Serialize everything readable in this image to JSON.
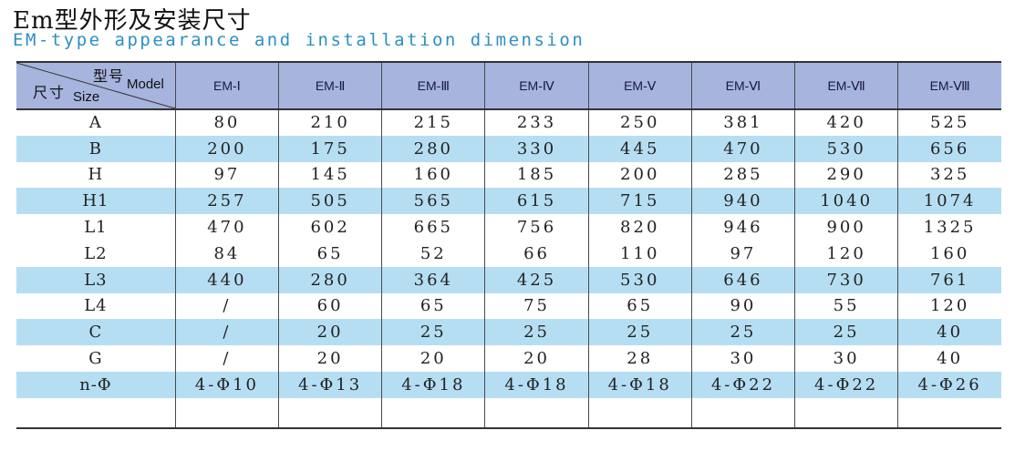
{
  "title_cn": "Em型外形及安装尺寸",
  "title_en": "EM-type appearance and installation dimension",
  "corner": {
    "model_cn": "型号",
    "model_en": "Model",
    "size_cn": "尺寸",
    "size_en": "Size"
  },
  "models": [
    "EM-Ⅰ",
    "EM-Ⅱ",
    "EM-Ⅲ",
    "EM-Ⅳ",
    "EM-Ⅴ",
    "EM-Ⅵ",
    "EM-Ⅶ",
    "EM-Ⅷ"
  ],
  "rows": [
    {
      "name": "A",
      "shade": "white",
      "values": [
        "80",
        "210",
        "215",
        "233",
        "250",
        "381",
        "420",
        "525"
      ]
    },
    {
      "name": "B",
      "shade": "blue",
      "values": [
        "200",
        "175",
        "280",
        "330",
        "445",
        "470",
        "530",
        "656"
      ]
    },
    {
      "name": "H",
      "shade": "white",
      "values": [
        "97",
        "145",
        "160",
        "185",
        "200",
        "285",
        "290",
        "325"
      ]
    },
    {
      "name": "H1",
      "shade": "blue",
      "values": [
        "257",
        "505",
        "565",
        "615",
        "715",
        "940",
        "1040",
        "1074"
      ]
    },
    {
      "name": "L1",
      "shade": "white",
      "values": [
        "470",
        "602",
        "665",
        "756",
        "820",
        "946",
        "900",
        "1325"
      ]
    },
    {
      "name": "L2",
      "shade": "white",
      "values": [
        "84",
        "65",
        "52",
        "66",
        "110",
        "97",
        "120",
        "160"
      ]
    },
    {
      "name": "L3",
      "shade": "blue",
      "values": [
        "440",
        "280",
        "364",
        "425",
        "530",
        "646",
        "730",
        "761"
      ]
    },
    {
      "name": "L4",
      "shade": "white",
      "values": [
        "/",
        "60",
        "65",
        "75",
        "65",
        "90",
        "55",
        "120"
      ]
    },
    {
      "name": "C",
      "shade": "blue",
      "values": [
        "/",
        "20",
        "25",
        "25",
        "25",
        "25",
        "25",
        "40"
      ]
    },
    {
      "name": "G",
      "shade": "white",
      "values": [
        "/",
        "20",
        "20",
        "20",
        "28",
        "30",
        "30",
        "40"
      ]
    },
    {
      "name": "n-Φ",
      "shade": "blue",
      "values": [
        "4-Φ10",
        "4-Φ13",
        "4-Φ18",
        "4-Φ18",
        "4-Φ18",
        "4-Φ22",
        "4-Φ22",
        "4-Φ26"
      ]
    }
  ],
  "colors": {
    "header_bg": "#a6b4de",
    "row_blue": "#b6def3",
    "title_en": "#2d8fc5"
  }
}
